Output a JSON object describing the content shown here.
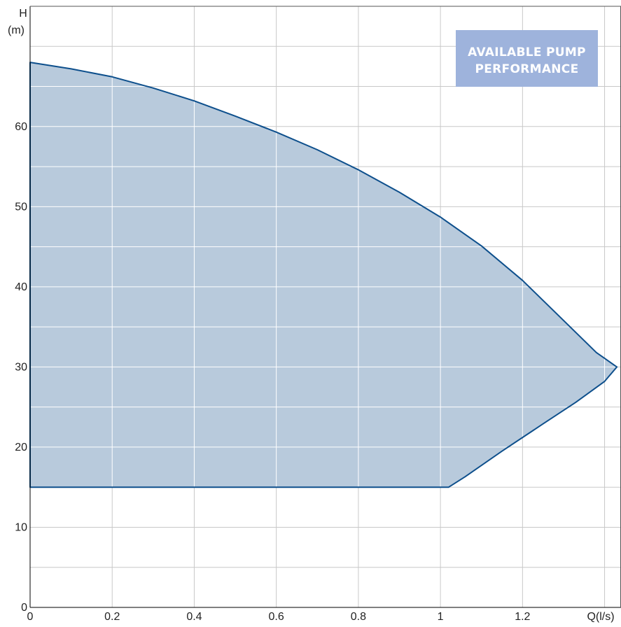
{
  "chart_data": {
    "type": "area",
    "title": "",
    "xlabel": "Q(l/s)",
    "ylabel_top": "H",
    "ylabel_bottom": "(m)",
    "xlim": [
      0,
      1.44
    ],
    "ylim": [
      0,
      75
    ],
    "x_ticks": [
      0,
      0.2,
      0.4,
      0.6,
      0.8,
      1,
      1.2
    ],
    "x_tick_labels": [
      "0",
      "0.2",
      "0.4",
      "0.6",
      "0.8",
      "1",
      "1.2"
    ],
    "y_ticks": [
      0,
      10,
      20,
      30,
      40,
      50,
      60
    ],
    "y_tick_labels": [
      "0",
      "10",
      "20",
      "30",
      "40",
      "50",
      "60"
    ],
    "x_grid_step": 0.2,
    "y_grid_step": 5,
    "grid": true,
    "legend": "none",
    "badge": {
      "line1": "AVAILABLE PUMP",
      "line2": "PERFORMANCE",
      "position": "top-right"
    },
    "series": [
      {
        "upper_curve": {
          "x": [
            0,
            0.1,
            0.2,
            0.3,
            0.4,
            0.5,
            0.6,
            0.7,
            0.8,
            0.9,
            1.0,
            1.1,
            1.2,
            1.3,
            1.38,
            1.43
          ],
          "y": [
            68,
            67.2,
            66.2,
            64.8,
            63.2,
            61.3,
            59.3,
            57.1,
            54.6,
            51.8,
            48.7,
            45.1,
            40.8,
            35.8,
            31.8,
            30
          ]
        },
        "lower_curve": {
          "x": [
            1.43,
            1.4,
            1.33,
            1.25,
            1.15,
            1.06,
            1.02,
            0
          ],
          "y": [
            30,
            28.2,
            25.6,
            22.9,
            19.5,
            16.3,
            15,
            15
          ]
        }
      }
    ],
    "colors": {
      "fill": "#b8cadc",
      "line": "#0d4f8c",
      "grid_on_fill": "#ffffff",
      "grid_off_fill": "#c8c8c8",
      "badge_bg": "#9eb3dc",
      "axis": "#000000"
    }
  }
}
